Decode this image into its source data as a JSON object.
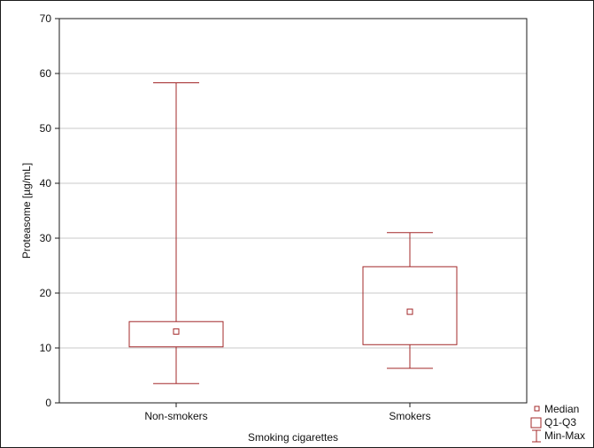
{
  "chart_data": {
    "type": "boxplot",
    "xlabel": "Smoking cigarettes",
    "ylabel": "Proteasome [µg/mL]",
    "ylim": [
      0,
      70
    ],
    "yticks": [
      "0",
      "10",
      "20",
      "30",
      "40",
      "50",
      "60",
      "70"
    ],
    "grid": true,
    "legend_position": "bottom-right outside",
    "color": "#a3282a",
    "categories": [
      "Non-smokers",
      "Smokers"
    ],
    "groups": [
      {
        "label": "Non-smokers",
        "min": 3.5,
        "q1": 10.2,
        "median": 13.0,
        "q3": 14.8,
        "max": 58.3
      },
      {
        "label": "Smokers",
        "min": 6.3,
        "q1": 10.6,
        "median": 16.6,
        "q3": 24.8,
        "max": 31.0
      }
    ],
    "legend": [
      "Median",
      "Q1-Q3",
      "Min-Max"
    ]
  }
}
